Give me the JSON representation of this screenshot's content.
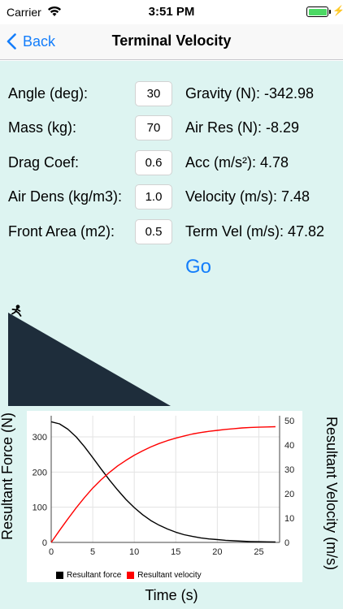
{
  "status": {
    "carrier": "Carrier",
    "time": "3:51 PM",
    "battery_level": 1.0,
    "icons": [
      "wifi-icon",
      "battery-icon",
      "charging-icon"
    ]
  },
  "nav": {
    "back_label": "Back",
    "title": "Terminal Velocity"
  },
  "inputs": [
    {
      "label": "Angle (deg):",
      "value": "30"
    },
    {
      "label": "Mass (kg):",
      "value": "70"
    },
    {
      "label": "Drag Coef:",
      "value": "0.6"
    },
    {
      "label": "Air Dens (kg/m3):",
      "value": "1.0"
    },
    {
      "label": "Front Area (m2):",
      "value": "0.5"
    }
  ],
  "results": [
    {
      "text": "Gravity (N): -342.98"
    },
    {
      "text": "Air Res (N): -8.29"
    },
    {
      "text": "Acc (m/s²): 4.78"
    },
    {
      "text": "Velocity (m/s): 7.48"
    },
    {
      "text": "Term Vel (m/s): 47.82"
    }
  ],
  "go_label": "Go",
  "colors": {
    "accent": "#147efb",
    "background": "#ddf4f1",
    "slope": "#1e2d3b",
    "force_series": "#000000",
    "velocity_series": "#ff0000"
  },
  "chart_data": {
    "type": "line",
    "xlabel": "Time (s)",
    "ylabel_left": "Resultant Force (N)",
    "ylabel_right": "Resultant Velocity (m/s)",
    "x_ticks": [
      0,
      5,
      10,
      15,
      20,
      25
    ],
    "y_left_ticks": [
      0,
      100,
      200,
      300
    ],
    "y_right_ticks": [
      0,
      10,
      20,
      30,
      40,
      50
    ],
    "xlim": [
      0,
      27.5
    ],
    "ylim_left": [
      0,
      360
    ],
    "ylim_right": [
      0,
      52
    ],
    "grid": true,
    "legend_position": "bottom",
    "series": [
      {
        "name": "Resultant force",
        "axis": "left",
        "x": [
          0,
          1,
          2,
          3,
          4,
          5,
          6,
          7,
          8,
          9,
          10,
          11,
          12,
          13,
          14,
          15,
          16,
          17,
          18,
          19,
          20,
          21,
          22,
          23,
          24,
          25,
          26,
          27
        ],
        "values": [
          343,
          337,
          322,
          300,
          272,
          241,
          209,
          178,
          149,
          122,
          99,
          79,
          62,
          49,
          38,
          29,
          22,
          17,
          13,
          10,
          8,
          6,
          4.6,
          3.5,
          2.6,
          2,
          1.5,
          1.1
        ]
      },
      {
        "name": "Resultant velocity",
        "axis": "right",
        "x": [
          0,
          1,
          2,
          3,
          4,
          5,
          6,
          7,
          8,
          9,
          10,
          11,
          12,
          13,
          14,
          15,
          16,
          17,
          18,
          19,
          20,
          21,
          22,
          23,
          24,
          25,
          26,
          27
        ],
        "values": [
          0,
          4.9,
          9.6,
          14.2,
          18.4,
          22.3,
          25.7,
          28.7,
          31.4,
          33.7,
          35.8,
          37.6,
          39.2,
          40.6,
          41.8,
          42.8,
          43.7,
          44.5,
          45.1,
          45.6,
          46.0,
          46.4,
          46.7,
          47.0,
          47.2,
          47.3,
          47.4,
          47.5
        ]
      }
    ]
  }
}
